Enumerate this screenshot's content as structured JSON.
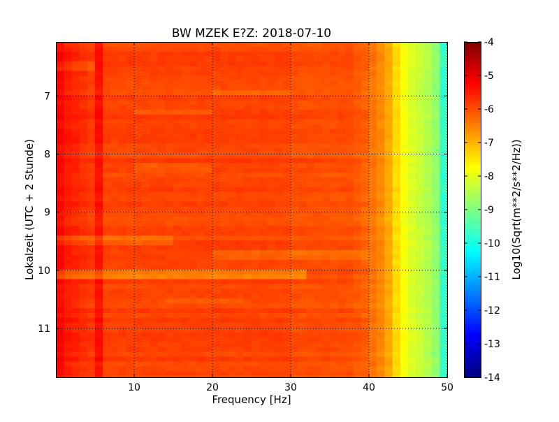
{
  "chart_data": {
    "type": "heatmap",
    "title": "BW MZEK E?Z: 2018-07-10",
    "xlabel": "Frequency [Hz]",
    "ylabel": "Lokalzeit (UTC + 2 Stunde)",
    "colorbar_label": "Log10(Sqrt(m**2/s**2/Hz))",
    "xlim": [
      0,
      50
    ],
    "ylim": [
      11.84,
      6.07
    ],
    "clim": [
      -14,
      -4
    ],
    "colormap": "jet",
    "grid": true,
    "x_ticks": [
      "10",
      "20",
      "30",
      "40",
      "50"
    ],
    "x_tick_values": [
      10,
      20,
      30,
      40,
      50
    ],
    "y_ticks": [
      "7",
      "8",
      "9",
      "10",
      "11"
    ],
    "y_tick_values": [
      7,
      8,
      9,
      10,
      11
    ],
    "colorbar_ticks": [
      "-4",
      "-5",
      "-6",
      "-7",
      "-8",
      "-9",
      "-10",
      "-11",
      "-12",
      "-13",
      "-14"
    ],
    "colorbar_tick_values": [
      -4,
      -5,
      -6,
      -7,
      -8,
      -9,
      -10,
      -11,
      -12,
      -13,
      -14
    ],
    "freq_bin_hz": 1,
    "time_step_hours": 0.0833,
    "mean_spectrum": [
      -5.3,
      -5.5,
      -5.6,
      -5.7,
      -5.8,
      -5.4,
      -5.9,
      -5.9,
      -5.9,
      -5.9,
      -5.9,
      -5.9,
      -5.9,
      -5.9,
      -5.9,
      -5.9,
      -5.9,
      -5.9,
      -5.9,
      -5.9,
      -5.9,
      -5.9,
      -5.9,
      -5.9,
      -5.9,
      -5.9,
      -5.9,
      -5.9,
      -5.9,
      -5.9,
      -6.0,
      -6.0,
      -6.0,
      -6.0,
      -6.0,
      -6.0,
      -6.0,
      -6.0,
      -6.1,
      -6.2,
      -6.4,
      -6.6,
      -6.9,
      -7.4,
      -7.8,
      -8.1,
      -8.3,
      -8.5,
      -8.8,
      -9.7
    ],
    "row_anomalies": [
      {
        "time": 6.45,
        "freq": [
          0,
          5
        ],
        "offset": -0.3
      },
      {
        "time": 6.9,
        "freq": [
          20,
          30
        ],
        "offset": -0.25
      },
      {
        "time": 7.25,
        "freq": [
          10,
          20
        ],
        "offset": -0.3
      },
      {
        "time": 8.2,
        "freq": [
          10,
          20
        ],
        "offset": -0.2
      },
      {
        "time": 9.45,
        "freq": [
          0,
          15
        ],
        "offset": -0.35
      },
      {
        "time": 9.7,
        "freq": [
          20,
          40
        ],
        "offset": -0.3
      },
      {
        "time": 10.02,
        "freq": [
          0,
          32
        ],
        "offset": -0.6
      },
      {
        "time": 10.5,
        "freq": [
          14,
          24
        ],
        "offset": -0.2
      },
      {
        "time": 11.55,
        "freq": [
          0,
          40
        ],
        "offset": -0.2
      }
    ]
  }
}
